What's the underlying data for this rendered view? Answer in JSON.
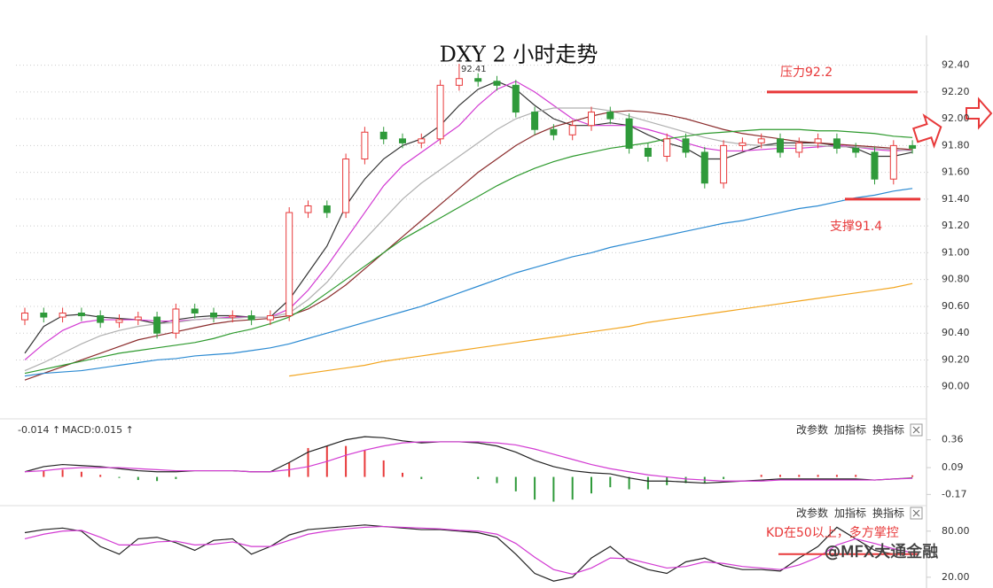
{
  "chart_data": [
    {
      "type": "candlestick",
      "title": "DXY 2 小时走势",
      "open": [
        90.5,
        90.55,
        90.52,
        90.55,
        90.53,
        90.48,
        90.5,
        90.52,
        90.4,
        90.58,
        90.55,
        90.52,
        90.53,
        90.5,
        90.53,
        91.3,
        91.35,
        91.3,
        91.7,
        91.9,
        91.85,
        91.82,
        91.85,
        92.25,
        92.3,
        92.28,
        92.25,
        92.05,
        91.92,
        91.88,
        91.95,
        92.05,
        92.0,
        91.78,
        91.72,
        91.85,
        91.75,
        91.52,
        91.8,
        91.82,
        91.85,
        91.75,
        91.82,
        91.85,
        91.78,
        91.75,
        91.55,
        91.8
      ],
      "high": [
        90.59,
        90.59,
        90.59,
        90.59,
        90.57,
        90.54,
        90.56,
        90.56,
        90.62,
        90.62,
        90.59,
        90.57,
        90.57,
        90.57,
        91.34,
        91.39,
        91.39,
        91.74,
        91.94,
        91.94,
        91.89,
        91.89,
        92.29,
        92.41,
        92.34,
        92.32,
        92.29,
        92.09,
        91.96,
        91.99,
        92.09,
        92.09,
        92.04,
        91.82,
        91.89,
        91.89,
        91.79,
        91.84,
        91.86,
        91.89,
        91.89,
        91.86,
        91.89,
        91.89,
        91.82,
        91.79,
        91.84,
        91.84
      ],
      "low": [
        90.46,
        90.48,
        90.48,
        90.49,
        90.44,
        90.44,
        90.46,
        90.36,
        90.36,
        90.51,
        90.48,
        90.48,
        90.46,
        90.46,
        90.49,
        91.26,
        91.26,
        91.26,
        91.66,
        91.81,
        91.78,
        91.78,
        91.81,
        92.21,
        92.24,
        92.21,
        92.01,
        91.88,
        91.84,
        91.84,
        91.91,
        91.96,
        91.74,
        91.68,
        91.68,
        91.71,
        91.48,
        91.48,
        91.76,
        91.78,
        91.71,
        91.71,
        91.78,
        91.74,
        91.71,
        91.51,
        91.51,
        91.74
      ],
      "close": [
        90.55,
        90.52,
        90.55,
        90.53,
        90.48,
        90.5,
        90.52,
        90.4,
        90.58,
        90.55,
        90.52,
        90.53,
        90.5,
        90.53,
        91.3,
        91.35,
        91.3,
        91.7,
        91.9,
        91.85,
        91.82,
        91.85,
        92.25,
        92.3,
        92.28,
        92.25,
        92.05,
        91.92,
        91.88,
        91.95,
        92.05,
        92.0,
        91.78,
        91.72,
        91.85,
        91.75,
        91.52,
        91.8,
        91.82,
        91.85,
        91.75,
        91.82,
        91.85,
        91.78,
        91.75,
        91.55,
        91.8,
        91.78
      ],
      "up_color": "#e8393a",
      "down_color": "#2f9a3a",
      "series": [
        {
          "color": "#333333",
          "values": [
            90.25,
            90.45,
            90.53,
            90.54,
            90.52,
            90.51,
            90.5,
            90.47,
            90.5,
            90.52,
            90.53,
            90.53,
            90.52,
            90.52,
            90.65,
            90.85,
            91.05,
            91.35,
            91.55,
            91.7,
            91.8,
            91.85,
            91.95,
            92.1,
            92.22,
            92.28,
            92.22,
            92.1,
            92.0,
            91.95,
            91.95,
            91.97,
            91.95,
            91.88,
            91.82,
            91.78,
            91.7,
            91.7,
            91.75,
            91.8,
            91.82,
            91.82,
            91.82,
            91.8,
            91.78,
            91.72,
            91.72,
            91.75
          ]
        },
        {
          "color": "#d23ad2",
          "values": [
            90.2,
            90.32,
            90.42,
            90.48,
            90.5,
            90.5,
            90.5,
            90.49,
            90.49,
            90.5,
            90.51,
            90.52,
            90.52,
            90.52,
            90.58,
            90.72,
            90.9,
            91.1,
            91.3,
            91.5,
            91.65,
            91.75,
            91.85,
            91.95,
            92.1,
            92.22,
            92.28,
            92.2,
            92.1,
            92.0,
            91.95,
            91.95,
            91.95,
            91.92,
            91.88,
            91.82,
            91.78,
            91.76,
            91.76,
            91.77,
            91.78,
            91.78,
            91.79,
            91.8,
            91.79,
            91.77,
            91.76,
            91.77
          ]
        },
        {
          "color": "#b0b0b0",
          "values": [
            90.12,
            90.18,
            90.25,
            90.32,
            90.38,
            90.42,
            90.45,
            90.47,
            90.48,
            90.5,
            90.51,
            90.51,
            90.52,
            90.52,
            90.55,
            90.65,
            90.78,
            90.95,
            91.1,
            91.25,
            91.4,
            91.52,
            91.62,
            91.72,
            91.82,
            91.92,
            92.0,
            92.05,
            92.08,
            92.08,
            92.08,
            92.06,
            92.02,
            91.98,
            91.94,
            91.9,
            91.86,
            91.83,
            91.81,
            91.8,
            91.8,
            91.8,
            91.8,
            91.79,
            91.79,
            91.78,
            91.77,
            91.76
          ]
        },
        {
          "color": "#8b2c2c",
          "values": [
            90.05,
            90.1,
            90.15,
            90.2,
            90.25,
            90.3,
            90.35,
            90.38,
            90.41,
            90.44,
            90.47,
            90.49,
            90.5,
            90.51,
            90.53,
            90.58,
            90.66,
            90.76,
            90.88,
            91.0,
            91.12,
            91.24,
            91.36,
            91.48,
            91.6,
            91.7,
            91.8,
            91.88,
            91.94,
            91.98,
            92.02,
            92.05,
            92.06,
            92.05,
            92.03,
            92.0,
            91.96,
            91.92,
            91.89,
            91.87,
            91.85,
            91.83,
            91.82,
            91.81,
            91.8,
            91.79,
            91.78,
            91.77
          ]
        },
        {
          "color": "#2e9a2e",
          "values": [
            90.1,
            90.13,
            90.16,
            90.19,
            90.22,
            90.25,
            90.27,
            90.29,
            90.31,
            90.33,
            90.36,
            90.4,
            90.43,
            90.47,
            90.52,
            90.6,
            90.7,
            90.8,
            90.9,
            91.0,
            91.1,
            91.18,
            91.26,
            91.34,
            91.42,
            91.5,
            91.57,
            91.63,
            91.68,
            91.72,
            91.75,
            91.78,
            91.8,
            91.82,
            91.85,
            91.87,
            91.89,
            91.9,
            91.91,
            91.92,
            91.92,
            91.92,
            91.91,
            91.91,
            91.9,
            91.89,
            91.87,
            91.86
          ]
        },
        {
          "color": "#2b8ad2",
          "values": [
            90.08,
            90.1,
            90.11,
            90.12,
            90.14,
            90.16,
            90.18,
            90.2,
            90.21,
            90.23,
            90.24,
            90.25,
            90.27,
            90.29,
            90.32,
            90.36,
            90.4,
            90.44,
            90.48,
            90.52,
            90.56,
            90.6,
            90.65,
            90.7,
            90.75,
            90.8,
            90.85,
            90.89,
            90.93,
            90.97,
            91.0,
            91.04,
            91.07,
            91.1,
            91.13,
            91.16,
            91.19,
            91.22,
            91.24,
            91.27,
            91.3,
            91.33,
            91.35,
            91.38,
            91.41,
            91.43,
            91.46,
            91.48
          ]
        },
        {
          "color": "#f2a51f",
          "values": [
            null,
            null,
            null,
            null,
            null,
            null,
            null,
            null,
            null,
            null,
            null,
            null,
            null,
            null,
            90.08,
            90.1,
            90.12,
            90.14,
            90.16,
            90.19,
            90.21,
            90.23,
            90.25,
            90.27,
            90.29,
            90.31,
            90.33,
            90.35,
            90.37,
            90.39,
            90.41,
            90.43,
            90.45,
            90.48,
            90.5,
            90.52,
            90.54,
            90.56,
            90.58,
            90.6,
            90.62,
            90.64,
            90.66,
            90.68,
            90.7,
            90.72,
            90.74,
            90.77
          ]
        }
      ],
      "ylim": [
        89.78,
        92.49
      ],
      "yticks": [
        {
          "value": 92.4,
          "label": "92.40"
        },
        {
          "value": 92.2,
          "label": "92.20"
        },
        {
          "value": 92.0,
          "label": "92.00"
        },
        {
          "value": 91.8,
          "label": "91.80"
        },
        {
          "value": 91.6,
          "label": "91.60"
        },
        {
          "value": 91.4,
          "label": "91.40"
        },
        {
          "value": 91.2,
          "label": "91.20"
        },
        {
          "value": 91.0,
          "label": "91.00"
        },
        {
          "value": 90.8,
          "label": "90.80"
        },
        {
          "value": 90.6,
          "label": "90.60"
        },
        {
          "value": 90.4,
          "label": "90.40"
        },
        {
          "value": 90.2,
          "label": "90.20"
        },
        {
          "value": 90.0,
          "label": "90.00"
        }
      ],
      "grid": true,
      "annotations": [
        {
          "text": "压力92.2",
          "value": 92.2
        },
        {
          "text": "支撑91.4",
          "value": 91.4
        },
        {
          "text": "92.41",
          "value": 92.41
        }
      ]
    },
    {
      "type": "macd",
      "legend": [
        "-0.014 ↑",
        "MACD:0.015 ↑"
      ],
      "toolbar": [
        "改参数",
        "加指标",
        "换指标"
      ],
      "dif": [
        0.05,
        0.1,
        0.12,
        0.11,
        0.1,
        0.08,
        0.06,
        0.05,
        0.05,
        0.06,
        0.06,
        0.06,
        0.05,
        0.05,
        0.14,
        0.24,
        0.3,
        0.36,
        0.39,
        0.38,
        0.35,
        0.33,
        0.34,
        0.34,
        0.33,
        0.3,
        0.24,
        0.16,
        0.1,
        0.06,
        0.04,
        0.03,
        -0.01,
        -0.04,
        -0.04,
        -0.05,
        -0.06,
        -0.05,
        -0.04,
        -0.03,
        -0.02,
        -0.02,
        -0.02,
        -0.02,
        -0.02,
        -0.03,
        -0.02,
        -0.01
      ],
      "dea": [
        0.05,
        0.06,
        0.08,
        0.09,
        0.09,
        0.09,
        0.08,
        0.07,
        0.06,
        0.06,
        0.06,
        0.06,
        0.05,
        0.05,
        0.07,
        0.1,
        0.15,
        0.21,
        0.26,
        0.3,
        0.33,
        0.34,
        0.34,
        0.34,
        0.34,
        0.33,
        0.31,
        0.27,
        0.22,
        0.17,
        0.12,
        0.08,
        0.05,
        0.02,
        0.0,
        -0.02,
        -0.03,
        -0.04,
        -0.04,
        -0.04,
        -0.03,
        -0.03,
        -0.03,
        -0.03,
        -0.03,
        -0.03,
        -0.02,
        -0.014
      ],
      "macd": [
        0.0,
        0.06,
        0.07,
        0.05,
        0.02,
        -0.01,
        -0.03,
        -0.04,
        -0.02,
        0.0,
        0.0,
        0.0,
        0.0,
        0.0,
        0.14,
        0.28,
        0.3,
        0.3,
        0.26,
        0.16,
        0.04,
        -0.02,
        0.0,
        0.0,
        -0.02,
        -0.06,
        -0.14,
        -0.22,
        -0.24,
        -0.22,
        -0.16,
        -0.1,
        -0.12,
        -0.12,
        -0.08,
        -0.06,
        -0.06,
        -0.02,
        0.0,
        0.02,
        0.02,
        0.02,
        0.02,
        0.02,
        0.02,
        0.0,
        0.0,
        0.015
      ],
      "dif_color": "#222222",
      "dea_color": "#d23ad2",
      "up_color": "#e8393a",
      "down_color": "#2f9a3a",
      "ylim": [
        -0.27,
        0.52
      ],
      "yticks": [
        0.36,
        0.09,
        -0.17
      ]
    },
    {
      "type": "kd",
      "toolbar": [
        "改参数",
        "加指标",
        "换指标"
      ],
      "k": [
        78,
        82,
        84,
        80,
        60,
        50,
        70,
        72,
        65,
        55,
        68,
        70,
        50,
        60,
        75,
        82,
        84,
        86,
        88,
        86,
        84,
        82,
        82,
        80,
        78,
        72,
        50,
        25,
        15,
        20,
        45,
        60,
        40,
        30,
        25,
        40,
        45,
        35,
        30,
        30,
        28,
        45,
        60,
        85,
        70,
        55,
        50,
        50
      ],
      "d": [
        70,
        76,
        80,
        81,
        72,
        62,
        62,
        66,
        67,
        62,
        63,
        66,
        60,
        60,
        68,
        76,
        80,
        83,
        85,
        86,
        85,
        84,
        83,
        81,
        80,
        76,
        64,
        46,
        30,
        24,
        32,
        45,
        44,
        38,
        32,
        34,
        40,
        38,
        34,
        32,
        30,
        36,
        46,
        62,
        70,
        64,
        57,
        52
      ],
      "k_color": "#222222",
      "d_color": "#d23ad2",
      "ylim": [
        6,
        112
      ],
      "yticks": [
        {
          "value": 80,
          "label": "80.00"
        },
        {
          "value": 20,
          "label": "20.00"
        }
      ],
      "annotations": [
        {
          "text": "KD在50以上，多方掌控",
          "value": 50
        }
      ]
    }
  ],
  "watermark": "@MFX大通金融"
}
